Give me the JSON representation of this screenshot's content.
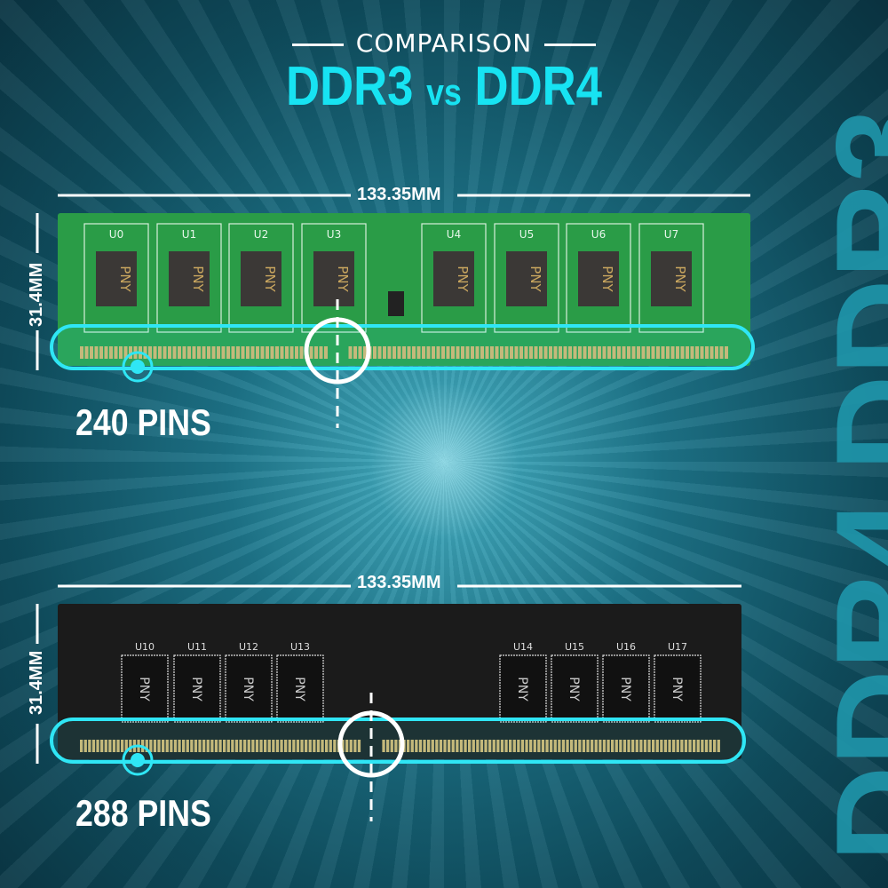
{
  "header": {
    "kicker": "COMPARISON",
    "title_a": "DDR3",
    "title_vs": "vs",
    "title_b": "DDR4"
  },
  "ddr3": {
    "label": "DDR3",
    "width": "133.35MM",
    "height": "31.4MM",
    "pins": "240 PINS",
    "chips": [
      "U0",
      "U1",
      "U2",
      "U3",
      "U4",
      "U5",
      "U6",
      "U7"
    ],
    "chip_brand": "PNY",
    "pcb_color": "#2a9c47"
  },
  "ddr4": {
    "label": "DDR4",
    "width": "133.35MM",
    "height": "31.4MM",
    "pins": "288 PINS",
    "chips": [
      "U10",
      "U11",
      "U12",
      "U13",
      "U14",
      "U15",
      "U16",
      "U17"
    ],
    "chip_brand": "PNY",
    "pcb_color": "#1b1b1b"
  },
  "colors": {
    "accent": "#17e3f2",
    "highlight": "#2fe6f5"
  }
}
